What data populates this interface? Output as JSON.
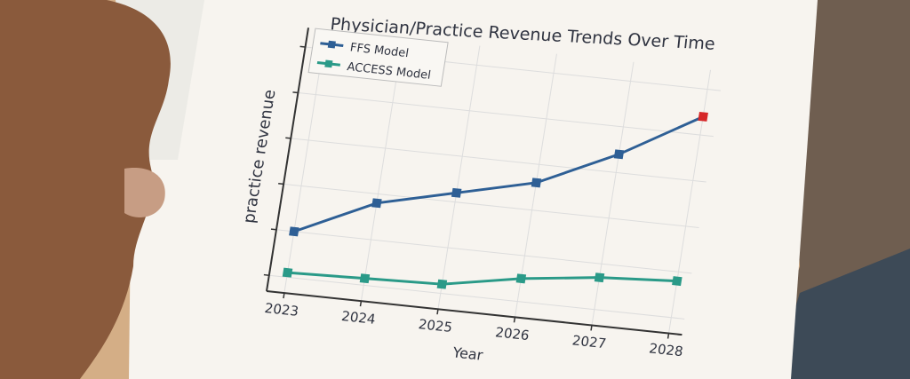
{
  "chart_data": {
    "type": "line",
    "title": "Physician/Practice Revenue Trends Over Time",
    "xlabel": "Year",
    "ylabel": "practice revenue",
    "x": [
      2023,
      2024,
      2025,
      2026,
      2027,
      2028
    ],
    "xlim": [
      2023,
      2028
    ],
    "ylim": [
      0,
      5
    ],
    "y_tick_count": 6,
    "y_tick_labels_shown": false,
    "grid": true,
    "legend": "top-left",
    "series": [
      {
        "name": "FFS Model",
        "values": [
          1.0,
          1.8,
          2.2,
          2.6,
          3.4,
          4.4
        ],
        "color": "#2e5f95",
        "last_marker_color": "#d62728"
      },
      {
        "name": "ACCESS Model",
        "values": [
          0.1,
          0.15,
          0.2,
          0.5,
          0.7,
          0.8
        ],
        "color": "#2a9a88"
      }
    ]
  }
}
